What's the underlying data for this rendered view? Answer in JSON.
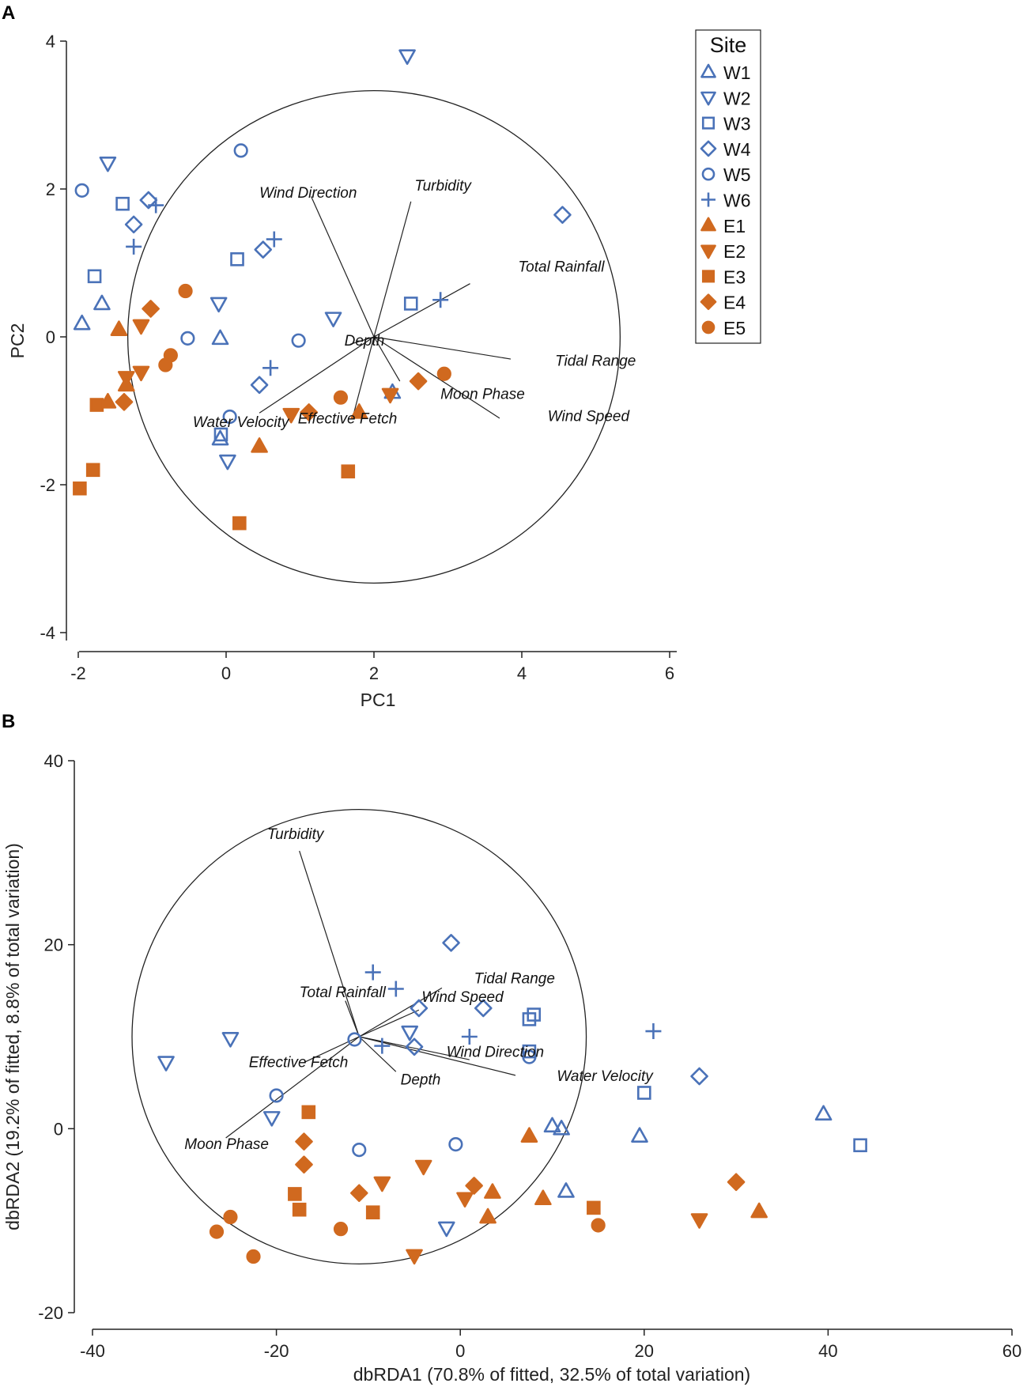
{
  "panels": {
    "a": "A",
    "b": "B"
  },
  "legend": {
    "title": "Site",
    "entries": [
      {
        "label": "W1",
        "marker": "triangle-up",
        "group": "west"
      },
      {
        "label": "W2",
        "marker": "triangle-down",
        "group": "west"
      },
      {
        "label": "W3",
        "marker": "square",
        "group": "west"
      },
      {
        "label": "W4",
        "marker": "diamond",
        "group": "west"
      },
      {
        "label": "W5",
        "marker": "circle",
        "group": "west"
      },
      {
        "label": "W6",
        "marker": "plus",
        "group": "west"
      },
      {
        "label": "E1",
        "marker": "triangle-up",
        "group": "east"
      },
      {
        "label": "E2",
        "marker": "triangle-down",
        "group": "east"
      },
      {
        "label": "E3",
        "marker": "square",
        "group": "east"
      },
      {
        "label": "E4",
        "marker": "diamond",
        "group": "east"
      },
      {
        "label": "E5",
        "marker": "circle",
        "group": "east"
      }
    ]
  },
  "colors": {
    "west": "#4a72b8",
    "east": "#d0691f",
    "axis": "#222222",
    "vector": "#222222"
  },
  "chart_data": [
    {
      "id": "A",
      "type": "scatter",
      "title": "",
      "xlabel": "PC1",
      "ylabel": "PC2",
      "xlim": [
        -2,
        6
      ],
      "ylim": [
        -4,
        4
      ],
      "xticks": [
        -2,
        0,
        2,
        4,
        6
      ],
      "yticks": [
        -4,
        -2,
        0,
        2,
        4
      ],
      "circle": {
        "cx": 2,
        "cy": 0,
        "r": 3.33
      },
      "vectors": [
        {
          "label": "Wind Direction",
          "x": 1.15,
          "y": 1.9,
          "tx": 0.45,
          "ty": 1.88
        },
        {
          "label": "Turbidity",
          "x": 2.5,
          "y": 1.83,
          "tx": 2.55,
          "ty": 1.98
        },
        {
          "label": "Total Rainfall",
          "x": 3.3,
          "y": 0.72,
          "tx": 3.95,
          "ty": 0.88
        },
        {
          "label": "Depth",
          "x": 1.68,
          "y": -0.1,
          "tx": 1.6,
          "ty": -0.12
        },
        {
          "label": "Tidal Range",
          "x": 3.85,
          "y": -0.3,
          "tx": 4.45,
          "ty": -0.39
        },
        {
          "label": "Moon Phase",
          "x": 2.35,
          "y": -0.6,
          "tx": 2.9,
          "ty": -0.84
        },
        {
          "label": "Wind Speed",
          "x": 3.7,
          "y": -1.1,
          "tx": 4.35,
          "ty": -1.14
        },
        {
          "label": "Effective Fetch",
          "x": 1.72,
          "y": -1.06,
          "tx": 0.97,
          "ty": -1.17
        },
        {
          "label": "Water Velocity",
          "x": 0.45,
          "y": -1.03,
          "tx": -0.45,
          "ty": -1.22
        }
      ],
      "series": [
        {
          "name": "W1",
          "points": [
            [
              -1.95,
              0.18
            ],
            [
              -1.68,
              0.45
            ],
            [
              -0.08,
              -0.02
            ],
            [
              2.25,
              -0.75
            ],
            [
              -0.08,
              -1.38
            ]
          ]
        },
        {
          "name": "W2",
          "points": [
            [
              2.45,
              3.8
            ],
            [
              -1.6,
              2.35
            ],
            [
              -0.1,
              0.45
            ],
            [
              1.45,
              0.25
            ],
            [
              0.02,
              -1.68
            ]
          ]
        },
        {
          "name": "W3",
          "points": [
            [
              -1.4,
              1.8
            ],
            [
              -1.78,
              0.82
            ],
            [
              0.15,
              1.05
            ],
            [
              2.5,
              0.45
            ],
            [
              -0.07,
              -1.32
            ]
          ]
        },
        {
          "name": "W4",
          "points": [
            [
              -1.05,
              1.85
            ],
            [
              -1.25,
              1.52
            ],
            [
              0.5,
              1.18
            ],
            [
              4.55,
              1.65
            ],
            [
              0.45,
              -0.65
            ]
          ]
        },
        {
          "name": "W5",
          "points": [
            [
              -1.95,
              1.98
            ],
            [
              0.2,
              2.52
            ],
            [
              -0.52,
              -0.02
            ],
            [
              0.98,
              -0.05
            ],
            [
              0.05,
              -1.08
            ]
          ]
        },
        {
          "name": "W6",
          "points": [
            [
              -0.95,
              1.78
            ],
            [
              0.65,
              1.32
            ],
            [
              -1.25,
              1.22
            ],
            [
              2.9,
              0.5
            ],
            [
              0.6,
              -0.42
            ]
          ]
        },
        {
          "name": "E1",
          "points": [
            [
              -1.45,
              0.1
            ],
            [
              -1.6,
              -0.88
            ],
            [
              -1.35,
              -0.65
            ],
            [
              1.8,
              -1.02
            ],
            [
              0.45,
              -1.48
            ]
          ]
        },
        {
          "name": "E2",
          "points": [
            [
              -1.15,
              0.15
            ],
            [
              -1.35,
              -0.55
            ],
            [
              -1.15,
              -0.48
            ],
            [
              0.88,
              -1.05
            ],
            [
              2.22,
              -0.78
            ]
          ]
        },
        {
          "name": "E3",
          "points": [
            [
              -1.75,
              -0.92
            ],
            [
              -1.8,
              -1.8
            ],
            [
              -1.98,
              -2.05
            ],
            [
              1.65,
              -1.82
            ],
            [
              0.18,
              -2.52
            ]
          ]
        },
        {
          "name": "E4",
          "points": [
            [
              -1.02,
              0.38
            ],
            [
              -1.38,
              -0.88
            ],
            [
              1.12,
              -1.02
            ],
            [
              2.6,
              -0.6
            ]
          ]
        },
        {
          "name": "E5",
          "points": [
            [
              -0.55,
              0.62
            ],
            [
              -0.75,
              -0.25
            ],
            [
              -0.82,
              -0.38
            ],
            [
              1.55,
              -0.82
            ],
            [
              2.95,
              -0.5
            ]
          ]
        }
      ]
    },
    {
      "id": "B",
      "type": "scatter",
      "title": "",
      "xlabel": "dbRDA1 (70.8% of fitted, 32.5% of total variation)",
      "ylabel": "dbRDA2 (19.2% of fitted, 8.8% of total variation)",
      "xlim": [
        -40,
        60
      ],
      "ylim": [
        -20,
        40
      ],
      "xticks": [
        -40,
        -20,
        0,
        20,
        40,
        60
      ],
      "yticks": [
        -20,
        0,
        20,
        40
      ],
      "circle": {
        "cx": -11,
        "cy": 10,
        "r": 24.7
      },
      "vectors": [
        {
          "label": "Turbidity",
          "x": -17.5,
          "y": 30.2,
          "tx": -21,
          "ty": 31.5
        },
        {
          "label": "Total Rainfall",
          "x": -12.5,
          "y": 13.9,
          "tx": -17.5,
          "ty": 14.3
        },
        {
          "label": "Tidal Range",
          "x": -2,
          "y": 15.3,
          "tx": 1.5,
          "ty": 15.8
        },
        {
          "label": "Wind Speed",
          "x": -4.5,
          "y": 12.9,
          "tx": -4.2,
          "ty": 13.8
        },
        {
          "label": "Effective Fetch",
          "x": -17,
          "y": 7.2,
          "tx": -23,
          "ty": 6.7
        },
        {
          "label": "Wind Direction",
          "x": 1,
          "y": 7.5,
          "tx": -1.5,
          "ty": 7.8
        },
        {
          "label": "Depth",
          "x": -7,
          "y": 6.2,
          "tx": -6.5,
          "ty": 4.8
        },
        {
          "label": "Water Velocity",
          "x": 6,
          "y": 5.8,
          "tx": 10.5,
          "ty": 5.2
        },
        {
          "label": "Moon Phase",
          "x": -25.5,
          "y": -1,
          "tx": -30,
          "ty": -2.2
        }
      ],
      "series": [
        {
          "name": "W1",
          "points": [
            [
              10,
              0.3
            ],
            [
              11,
              0
            ],
            [
              19.5,
              -0.8
            ],
            [
              39.5,
              1.6
            ],
            [
              11.5,
              -6.8
            ]
          ]
        },
        {
          "name": "W2",
          "points": [
            [
              -32,
              7.2
            ],
            [
              -25,
              9.8
            ],
            [
              -20.5,
              1.2
            ],
            [
              -5.5,
              10.5
            ],
            [
              -1.5,
              -10.8
            ]
          ]
        },
        {
          "name": "W3",
          "points": [
            [
              8,
              12.4
            ],
            [
              7.5,
              11.9
            ],
            [
              7.5,
              8.4
            ],
            [
              20,
              3.9
            ],
            [
              43.5,
              -1.8
            ]
          ]
        },
        {
          "name": "W4",
          "points": [
            [
              -1,
              20.2
            ],
            [
              -4.5,
              13.1
            ],
            [
              2.5,
              13.1
            ],
            [
              -5,
              8.9
            ],
            [
              26,
              5.7
            ]
          ]
        },
        {
          "name": "W5",
          "points": [
            [
              -11.5,
              9.7
            ],
            [
              -20,
              3.6
            ],
            [
              -11,
              -2.3
            ],
            [
              -0.5,
              -1.7
            ],
            [
              7.5,
              7.8
            ]
          ]
        },
        {
          "name": "W6",
          "points": [
            [
              -9.5,
              17
            ],
            [
              -7,
              15.2
            ],
            [
              1,
              10
            ],
            [
              21,
              10.6
            ],
            [
              -8.5,
              9
            ]
          ]
        },
        {
          "name": "E1",
          "points": [
            [
              7.5,
              -0.8
            ],
            [
              9,
              -7.6
            ],
            [
              3.5,
              -6.9
            ],
            [
              3,
              -9.6
            ],
            [
              32.5,
              -9
            ]
          ]
        },
        {
          "name": "E2",
          "points": [
            [
              -8.5,
              -5.9
            ],
            [
              -4,
              -4.1
            ],
            [
              0.5,
              -7.6
            ],
            [
              26,
              -9.9
            ],
            [
              -5,
              -13.8
            ]
          ]
        },
        {
          "name": "E3",
          "points": [
            [
              -16.5,
              1.8
            ],
            [
              -18,
              -7.1
            ],
            [
              -17.5,
              -8.8
            ],
            [
              -9.5,
              -9.1
            ],
            [
              14.5,
              -8.6
            ]
          ]
        },
        {
          "name": "E4",
          "points": [
            [
              -17,
              -1.4
            ],
            [
              -17,
              -3.9
            ],
            [
              -11,
              -7
            ],
            [
              1.5,
              -6.2
            ],
            [
              30,
              -5.8
            ]
          ]
        },
        {
          "name": "E5",
          "points": [
            [
              -25,
              -9.6
            ],
            [
              -26.5,
              -11.2
            ],
            [
              -22.5,
              -13.9
            ],
            [
              -13,
              -10.9
            ],
            [
              15,
              -10.5
            ]
          ]
        }
      ]
    }
  ]
}
